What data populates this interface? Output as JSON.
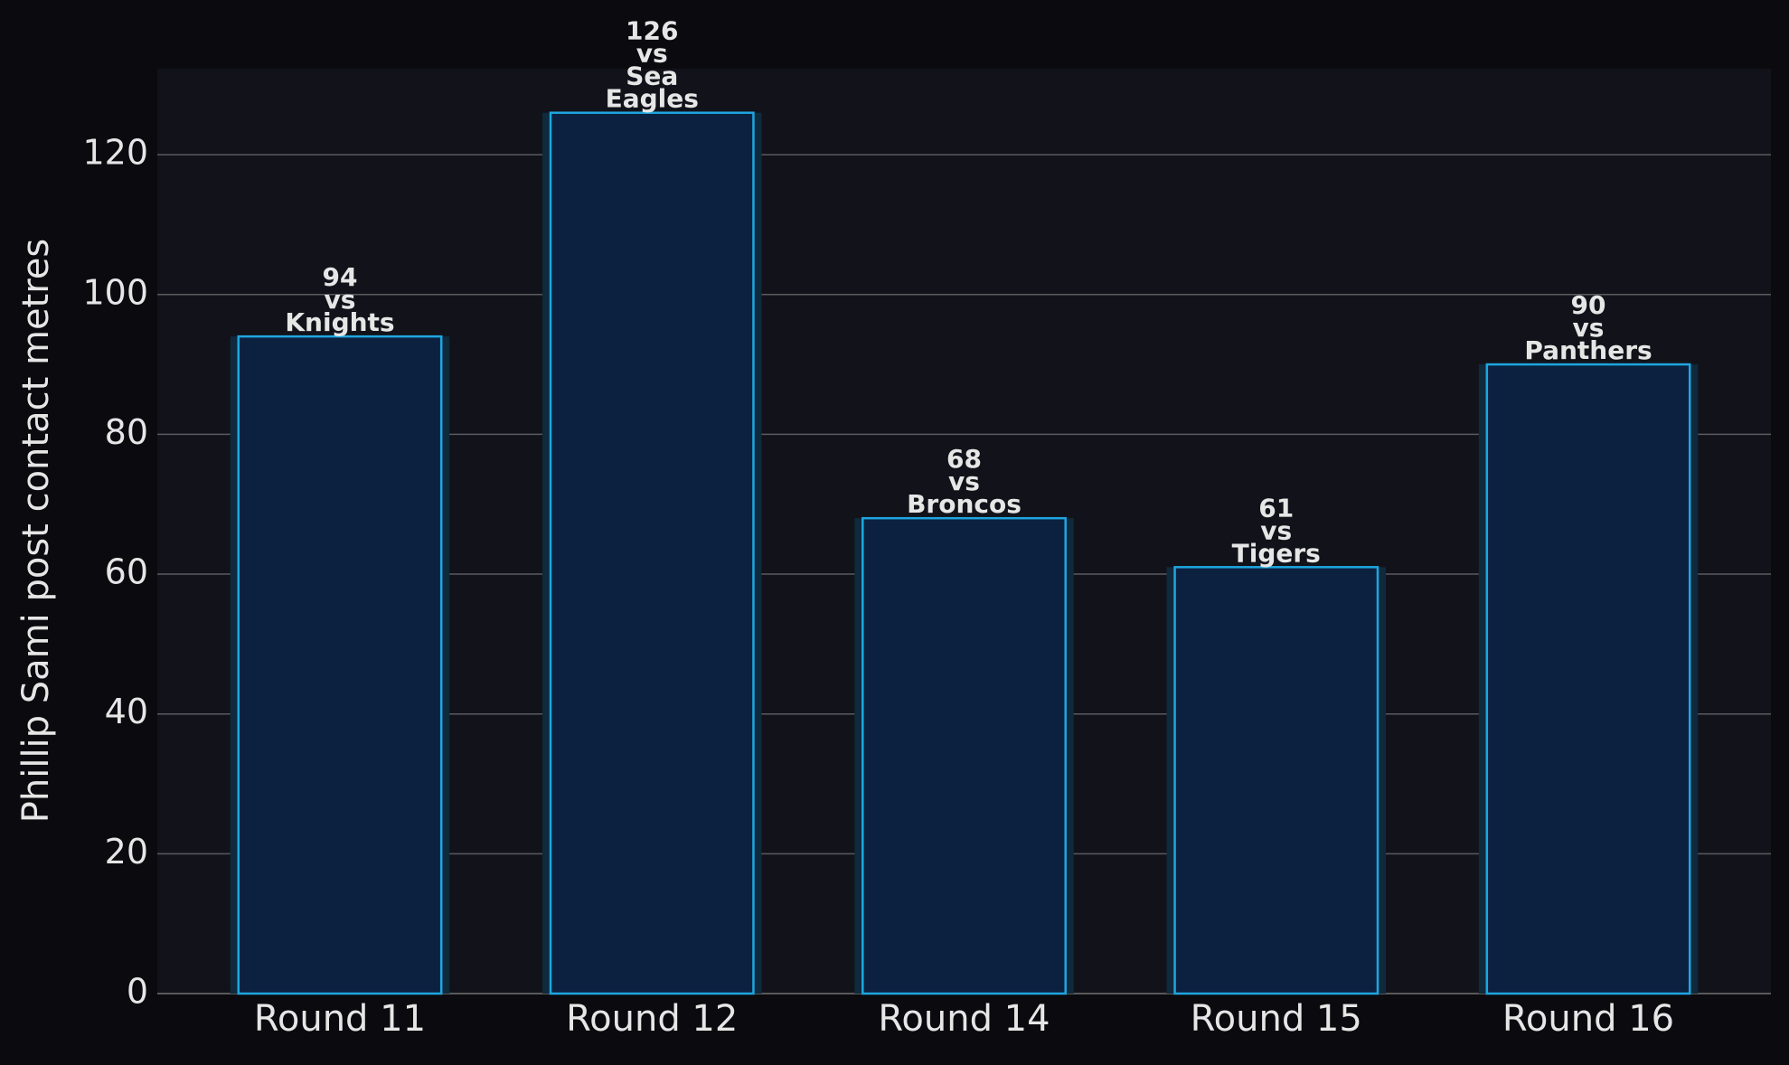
{
  "chart_data": {
    "type": "bar",
    "y_label": "Phillip Sami post contact metres",
    "categories": [
      "Round 11",
      "Round 12",
      "Round 14",
      "Round 15",
      "Round 16"
    ],
    "values": [
      94,
      126,
      68,
      61,
      90
    ],
    "value_labels": [
      "94\nvs\nKnights",
      "126\nvs\nSea\nEagles",
      "68\nvs\nBroncos",
      "61\nvs\nTigers",
      "90\nvs\nPanthers"
    ],
    "color": "#0c2140",
    "edge_color": "#1ea6e0",
    "ylim": [
      0,
      132.3
    ],
    "yticks": [
      0,
      20,
      40,
      60,
      80,
      100,
      120
    ],
    "grid": true
  }
}
